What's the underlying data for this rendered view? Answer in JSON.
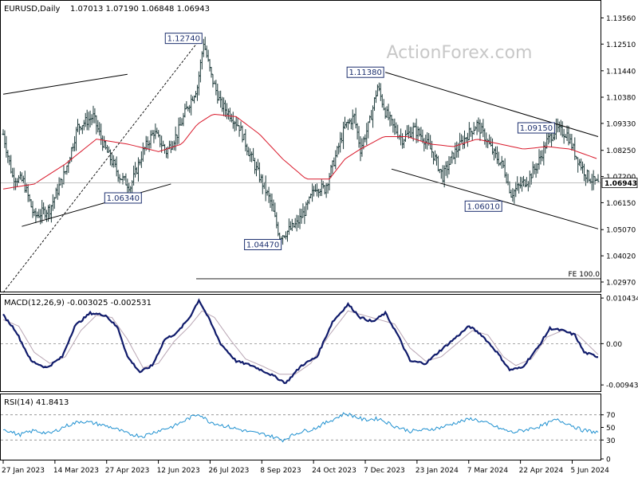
{
  "chart_data": [
    {
      "type": "bar",
      "panel": "price",
      "title": "EURUSD,Daily",
      "ohlc": "1.07013 1.07190 1.06848 1.06943",
      "last_price": "1.06943",
      "watermark": "ActionForex.com",
      "ylim": [
        1.0265,
        1.1415
      ],
      "y_ticks": [
        "1.13560",
        "1.12510",
        "1.11440",
        "1.10380",
        "1.09330",
        "1.08250",
        "1.07200",
        "1.06150",
        "1.05070",
        "1.04020",
        "1.02970"
      ],
      "x_ticks": [
        "27 Jan 2023",
        "14 Mar 2023",
        "27 Apr 2023",
        "12 Jun 2023",
        "26 Jul 2023",
        "8 Sep 2023",
        "24 Oct 2023",
        "7 Dec 2023",
        "23 Jan 2024",
        "7 Mar 2024",
        "22 Apr 2024",
        "5 Jun 2024"
      ],
      "price_path": [
        [
          0,
          1.089
        ],
        [
          6,
          1.072
        ],
        [
          13,
          1.07
        ],
        [
          20,
          1.056
        ],
        [
          30,
          1.059
        ],
        [
          40,
          1.074
        ],
        [
          48,
          1.092
        ],
        [
          58,
          1.096
        ],
        [
          65,
          1.084
        ],
        [
          75,
          1.072
        ],
        [
          82,
          1.068
        ],
        [
          90,
          1.082
        ],
        [
          97,
          1.09
        ],
        [
          105,
          1.082
        ],
        [
          112,
          1.089
        ],
        [
          118,
          1.099
        ],
        [
          125,
          1.108
        ],
        [
          129,
          1.126
        ],
        [
          134,
          1.112
        ],
        [
          140,
          1.101
        ],
        [
          146,
          1.097
        ],
        [
          152,
          1.092
        ],
        [
          158,
          1.082
        ],
        [
          165,
          1.072
        ],
        [
          172,
          1.062
        ],
        [
          178,
          1.048
        ],
        [
          183,
          1.05
        ],
        [
          189,
          1.053
        ],
        [
          195,
          1.059
        ],
        [
          201,
          1.068
        ],
        [
          207,
          1.067
        ],
        [
          214,
          1.08
        ],
        [
          220,
          1.092
        ],
        [
          226,
          1.096
        ],
        [
          230,
          1.083
        ],
        [
          236,
          1.094
        ],
        [
          241,
          1.108
        ],
        [
          246,
          1.098
        ],
        [
          251,
          1.092
        ],
        [
          257,
          1.087
        ],
        [
          264,
          1.091
        ],
        [
          270,
          1.088
        ],
        [
          276,
          1.082
        ],
        [
          283,
          1.072
        ],
        [
          290,
          1.081
        ],
        [
          298,
          1.088
        ],
        [
          305,
          1.093
        ],
        [
          311,
          1.087
        ],
        [
          316,
          1.081
        ],
        [
          322,
          1.076
        ],
        [
          327,
          1.065
        ],
        [
          332,
          1.068
        ],
        [
          338,
          1.071
        ],
        [
          344,
          1.077
        ],
        [
          350,
          1.086
        ],
        [
          356,
          1.091
        ],
        [
          363,
          1.089
        ],
        [
          369,
          1.08
        ],
        [
          375,
          1.073
        ],
        [
          380,
          1.07
        ],
        [
          383,
          1.069
        ]
      ],
      "ma_path": [
        [
          0,
          1.067
        ],
        [
          20,
          1.069
        ],
        [
          40,
          1.077
        ],
        [
          60,
          1.087
        ],
        [
          80,
          1.085
        ],
        [
          100,
          1.082
        ],
        [
          115,
          1.085
        ],
        [
          125,
          1.093
        ],
        [
          135,
          1.097
        ],
        [
          150,
          1.096
        ],
        [
          165,
          1.089
        ],
        [
          180,
          1.079
        ],
        [
          195,
          1.071
        ],
        [
          210,
          1.071
        ],
        [
          220,
          1.079
        ],
        [
          230,
          1.083
        ],
        [
          245,
          1.088
        ],
        [
          260,
          1.088
        ],
        [
          275,
          1.085
        ],
        [
          290,
          1.084
        ],
        [
          305,
          1.087
        ],
        [
          320,
          1.085
        ],
        [
          335,
          1.083
        ],
        [
          350,
          1.084
        ],
        [
          365,
          1.083
        ],
        [
          383,
          1.079
        ]
      ],
      "annotations": [
        {
          "label": "1.12740",
          "x": 129,
          "y": 1.1274,
          "box_side": "left"
        },
        {
          "label": "1.06340",
          "x": 90,
          "y": 1.0634,
          "box_side": "left"
        },
        {
          "label": "1.04470",
          "x": 180,
          "y": 1.0447,
          "box_side": "left"
        },
        {
          "label": "1.11380",
          "x": 246,
          "y": 1.1138,
          "box_side": "left"
        },
        {
          "label": "1.06010",
          "x": 322,
          "y": 1.0601,
          "box_side": "left"
        },
        {
          "label": "1.09150",
          "x": 356,
          "y": 1.0915,
          "box_side": "left"
        }
      ],
      "fe_label": "FE 100.0",
      "fe_level": 1.031,
      "trendlines": [
        {
          "x1": 0,
          "y1": 1.105,
          "x2": 80,
          "y2": 1.113
        },
        {
          "x1": 12,
          "y1": 1.052,
          "x2": 108,
          "y2": 1.069
        },
        {
          "x1": 0,
          "y1": 1.0255,
          "x2": 126,
          "y2": 1.1265
        },
        {
          "x1": 246,
          "y1": 1.1138,
          "x2": 383,
          "y2": 1.088
        },
        {
          "x1": 250,
          "y1": 1.075,
          "x2": 383,
          "y2": 1.051
        }
      ]
    },
    {
      "type": "line",
      "panel": "macd",
      "title": "MACD(12,26,9) -0.003025 -0.002531",
      "ylim": [
        -0.0105,
        0.011
      ],
      "y_ticks": [
        "0.010434",
        "0.00",
        "-0.009436"
      ],
      "zero_level": 0.0,
      "macd": [
        [
          0,
          0.0065
        ],
        [
          8,
          0.003
        ],
        [
          18,
          -0.004
        ],
        [
          28,
          -0.0055
        ],
        [
          38,
          -0.003
        ],
        [
          46,
          0.004
        ],
        [
          56,
          0.007
        ],
        [
          66,
          0.0065
        ],
        [
          74,
          0.0035
        ],
        [
          80,
          -0.003
        ],
        [
          88,
          -0.0065
        ],
        [
          96,
          -0.005
        ],
        [
          104,
          0.001
        ],
        [
          112,
          0.0025
        ],
        [
          120,
          0.006
        ],
        [
          126,
          0.01
        ],
        [
          132,
          0.006
        ],
        [
          140,
          0.0
        ],
        [
          150,
          -0.004
        ],
        [
          160,
          -0.005
        ],
        [
          172,
          -0.007
        ],
        [
          182,
          -0.009
        ],
        [
          192,
          -0.005
        ],
        [
          202,
          -0.003
        ],
        [
          212,
          0.005
        ],
        [
          222,
          0.009
        ],
        [
          230,
          0.006
        ],
        [
          238,
          0.005
        ],
        [
          246,
          0.007
        ],
        [
          254,
          0.002
        ],
        [
          262,
          -0.004
        ],
        [
          272,
          -0.0045
        ],
        [
          280,
          -0.002
        ],
        [
          290,
          0.001
        ],
        [
          300,
          0.004
        ],
        [
          308,
          0.002
        ],
        [
          318,
          -0.002
        ],
        [
          326,
          -0.006
        ],
        [
          334,
          -0.0055
        ],
        [
          344,
          -0.001
        ],
        [
          352,
          0.0035
        ],
        [
          360,
          0.003
        ],
        [
          368,
          0.002
        ],
        [
          374,
          -0.002
        ],
        [
          383,
          -0.003
        ]
      ],
      "signal": [
        [
          0,
          0.0055
        ],
        [
          10,
          0.004
        ],
        [
          20,
          -0.002
        ],
        [
          30,
          -0.0045
        ],
        [
          40,
          -0.003
        ],
        [
          50,
          0.003
        ],
        [
          60,
          0.0065
        ],
        [
          70,
          0.006
        ],
        [
          80,
          0.001
        ],
        [
          90,
          -0.0055
        ],
        [
          100,
          -0.0045
        ],
        [
          110,
          0.0005
        ],
        [
          120,
          0.004
        ],
        [
          128,
          0.0075
        ],
        [
          136,
          0.006
        ],
        [
          146,
          0.001
        ],
        [
          156,
          -0.0035
        ],
        [
          166,
          -0.005
        ],
        [
          178,
          -0.007
        ],
        [
          188,
          -0.007
        ],
        [
          198,
          -0.0045
        ],
        [
          210,
          0.002
        ],
        [
          222,
          0.0075
        ],
        [
          232,
          0.0065
        ],
        [
          242,
          0.0055
        ],
        [
          252,
          0.0045
        ],
        [
          262,
          -0.001
        ],
        [
          272,
          -0.004
        ],
        [
          282,
          -0.003
        ],
        [
          292,
          0.0
        ],
        [
          302,
          0.003
        ],
        [
          312,
          0.002
        ],
        [
          322,
          -0.003
        ],
        [
          330,
          -0.005
        ],
        [
          340,
          -0.0035
        ],
        [
          350,
          0.0015
        ],
        [
          360,
          0.003
        ],
        [
          370,
          0.002
        ],
        [
          383,
          -0.0025
        ]
      ]
    },
    {
      "type": "line",
      "panel": "rsi",
      "title": "RSI(14) 41.8413",
      "ylim": [
        0,
        100
      ],
      "y_ticks": [
        "70",
        "50",
        "30",
        "0"
      ],
      "levels": [
        70,
        30
      ],
      "rsi": [
        [
          0,
          48
        ],
        [
          10,
          38
        ],
        [
          20,
          45
        ],
        [
          30,
          40
        ],
        [
          40,
          52
        ],
        [
          50,
          60
        ],
        [
          60,
          56
        ],
        [
          70,
          50
        ],
        [
          80,
          40
        ],
        [
          90,
          36
        ],
        [
          100,
          45
        ],
        [
          110,
          52
        ],
        [
          120,
          65
        ],
        [
          126,
          72
        ],
        [
          132,
          60
        ],
        [
          140,
          54
        ],
        [
          150,
          48
        ],
        [
          160,
          42
        ],
        [
          170,
          38
        ],
        [
          180,
          30
        ],
        [
          190,
          42
        ],
        [
          200,
          48
        ],
        [
          210,
          60
        ],
        [
          220,
          72
        ],
        [
          226,
          68
        ],
        [
          232,
          62
        ],
        [
          242,
          64
        ],
        [
          252,
          52
        ],
        [
          262,
          44
        ],
        [
          272,
          46
        ],
        [
          282,
          50
        ],
        [
          292,
          58
        ],
        [
          302,
          64
        ],
        [
          312,
          56
        ],
        [
          320,
          48
        ],
        [
          328,
          42
        ],
        [
          336,
          46
        ],
        [
          346,
          52
        ],
        [
          356,
          62
        ],
        [
          364,
          56
        ],
        [
          372,
          46
        ],
        [
          383,
          42
        ]
      ]
    }
  ],
  "x_axis": {
    "ticks": [
      "27 Jan 2023",
      "14 Mar 2023",
      "27 Apr 2023",
      "12 Jun 2023",
      "26 Jul 2023",
      "8 Sep 2023",
      "24 Oct 2023",
      "7 Dec 2023",
      "23 Jan 2024",
      "7 Mar 2024",
      "22 Apr 2024",
      "5 Jun 2024"
    ]
  }
}
